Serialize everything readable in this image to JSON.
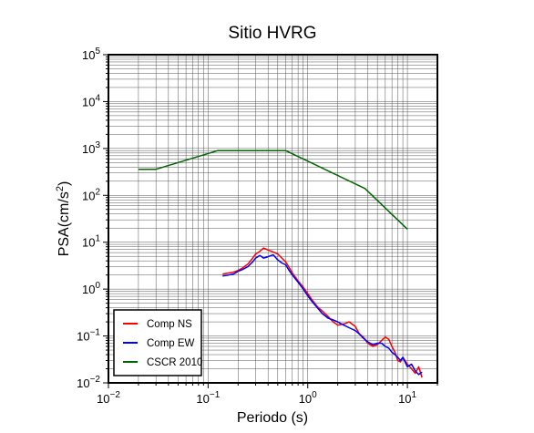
{
  "chart_data": {
    "type": "line",
    "title": "Sitio HVRG",
    "xlabel": "Periodo (s)",
    "ylabel_main": "PSA(cm/s",
    "ylabel_sup": "2",
    "ylabel_close": ")",
    "x_scale": "log",
    "y_scale": "log",
    "xlim": [
      0.01,
      20
    ],
    "ylim": [
      0.01,
      100000
    ],
    "grid": true,
    "legend_position": "bottom-left",
    "x_ticks": [
      {
        "value": 0.01,
        "base": "10",
        "exp": "−2"
      },
      {
        "value": 0.1,
        "base": "10",
        "exp": "−1"
      },
      {
        "value": 1,
        "base": "10",
        "exp": "0"
      },
      {
        "value": 10,
        "base": "10",
        "exp": "1"
      }
    ],
    "y_ticks": [
      {
        "value": 0.01,
        "base": "10",
        "exp": "−2"
      },
      {
        "value": 0.1,
        "base": "10",
        "exp": "−1"
      },
      {
        "value": 1,
        "base": "10",
        "exp": "0"
      },
      {
        "value": 10,
        "base": "10",
        "exp": "1"
      },
      {
        "value": 100,
        "base": "10",
        "exp": "2"
      },
      {
        "value": 1000,
        "base": "10",
        "exp": "3"
      },
      {
        "value": 10000,
        "base": "10",
        "exp": "4"
      },
      {
        "value": 100000,
        "base": "10",
        "exp": "5"
      }
    ],
    "series": [
      {
        "name": "Comp NS",
        "color": "#ff0000",
        "x": [
          0.14,
          0.16,
          0.18,
          0.2,
          0.22,
          0.25,
          0.28,
          0.3,
          0.33,
          0.36,
          0.4,
          0.45,
          0.5,
          0.55,
          0.6,
          0.65,
          0.7,
          0.8,
          0.9,
          1.0,
          1.1,
          1.25,
          1.4,
          1.6,
          1.8,
          2.0,
          2.3,
          2.6,
          3.0,
          3.3,
          3.6,
          4.0,
          4.5,
          5.0,
          5.5,
          6.0,
          6.5,
          7.0,
          7.5,
          8.0,
          8.5,
          9.0,
          10.0,
          11.0,
          12.0,
          13.0,
          14.0
        ],
        "y": [
          2.1,
          2.2,
          2.3,
          2.5,
          2.8,
          3.4,
          4.6,
          5.6,
          6.4,
          7.5,
          6.8,
          6.2,
          5.6,
          4.6,
          3.8,
          2.9,
          2.2,
          1.5,
          1.1,
          0.8,
          0.6,
          0.42,
          0.34,
          0.26,
          0.2,
          0.17,
          0.18,
          0.2,
          0.16,
          0.11,
          0.095,
          0.07,
          0.06,
          0.066,
          0.08,
          0.095,
          0.085,
          0.06,
          0.045,
          0.03,
          0.028,
          0.035,
          0.025,
          0.02,
          0.016,
          0.022,
          0.013
        ]
      },
      {
        "name": "Comp EW",
        "color": "#0000ff",
        "x": [
          0.14,
          0.16,
          0.18,
          0.2,
          0.22,
          0.25,
          0.28,
          0.3,
          0.33,
          0.36,
          0.4,
          0.45,
          0.5,
          0.55,
          0.6,
          0.65,
          0.7,
          0.8,
          0.9,
          1.0,
          1.1,
          1.25,
          1.4,
          1.6,
          1.8,
          2.0,
          2.3,
          2.6,
          3.0,
          3.3,
          3.6,
          4.0,
          4.5,
          5.0,
          5.5,
          6.0,
          6.5,
          7.0,
          7.5,
          8.0,
          8.5,
          9.0,
          10.0,
          11.0,
          12.0,
          13.0,
          14.0
        ],
        "y": [
          1.9,
          2.0,
          2.1,
          2.4,
          2.6,
          3.0,
          3.8,
          4.6,
          5.2,
          4.6,
          4.9,
          5.4,
          4.2,
          3.6,
          3.3,
          2.5,
          2.0,
          1.4,
          1.0,
          0.72,
          0.55,
          0.4,
          0.3,
          0.24,
          0.22,
          0.2,
          0.17,
          0.15,
          0.13,
          0.11,
          0.09,
          0.075,
          0.065,
          0.07,
          0.07,
          0.06,
          0.055,
          0.045,
          0.04,
          0.035,
          0.03,
          0.035,
          0.022,
          0.025,
          0.018,
          0.015,
          0.017
        ]
      },
      {
        "name": "CSCR 2010",
        "color": "#006400",
        "x": [
          0.02,
          0.03,
          0.125,
          0.6,
          3.75,
          10.0
        ],
        "y": [
          360,
          360,
          900,
          900,
          140,
          19
        ]
      }
    ]
  }
}
